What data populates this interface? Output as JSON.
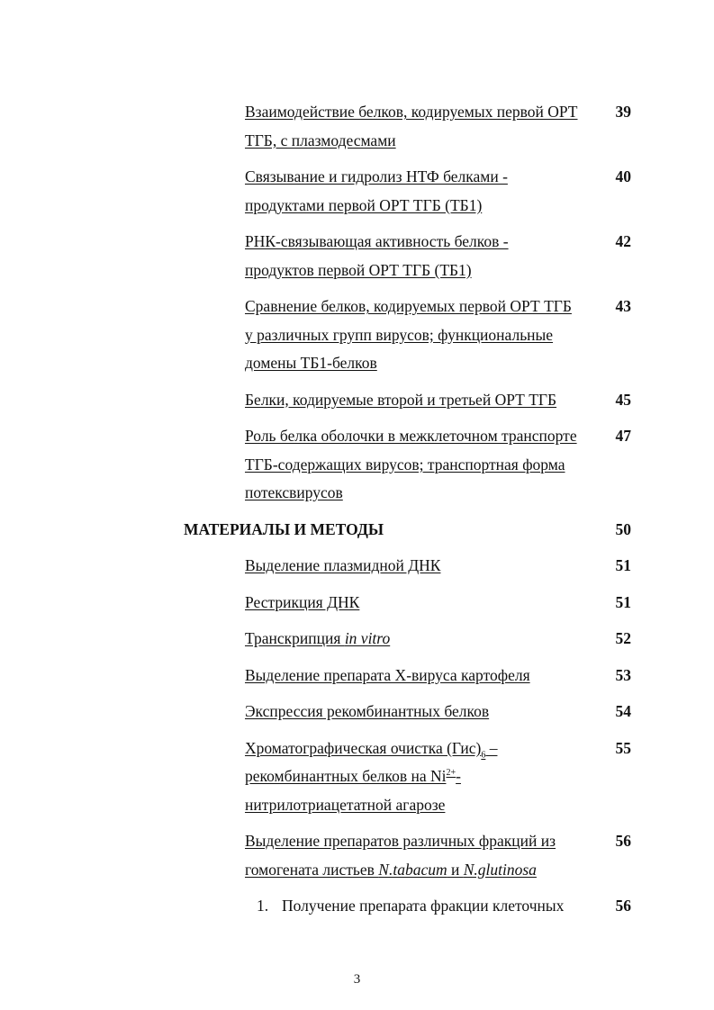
{
  "entries": [
    {
      "style": "u",
      "page": "39",
      "lines": [
        [
          {
            "t": "Взаимодействие белков, кодируемых первой ОРТ"
          }
        ],
        [
          {
            "t": "ТГБ, с плазмодесмами"
          }
        ]
      ]
    },
    {
      "style": "u",
      "page": "40",
      "lines": [
        [
          {
            "t": "Связывание и гидролиз НТФ белками -"
          }
        ],
        [
          {
            "t": "продуктами первой ОРТ ТГБ (ТБ1)"
          }
        ]
      ]
    },
    {
      "style": "u",
      "page": "42",
      "lines": [
        [
          {
            "t": "РНК-связывающая активность белков -"
          }
        ],
        [
          {
            "t": "продуктов первой ОРТ ТГБ (ТБ1)"
          }
        ]
      ]
    },
    {
      "style": "u",
      "page": "43",
      "lines": [
        [
          {
            "t": "Сравнение белков, кодируемых первой ОРТ ТГБ"
          }
        ],
        [
          {
            "t": "у различных групп вирусов; функциональные"
          }
        ],
        [
          {
            "t": "домены ТБ1-белков"
          }
        ]
      ]
    },
    {
      "style": "u",
      "page": "45",
      "lines": [
        [
          {
            "t": "Белки, кодируемые второй и третьей ОРТ ТГБ"
          }
        ]
      ]
    },
    {
      "style": "u",
      "page": "47",
      "lines": [
        [
          {
            "t": "Роль белка оболочки в межклеточном транспорте"
          }
        ],
        [
          {
            "t": "ТГБ-содержащих вирусов; транспортная форма"
          }
        ],
        [
          {
            "t": "потексвирусов"
          }
        ]
      ]
    },
    {
      "style": "heading",
      "page": "50",
      "lines": [
        [
          {
            "t": "МАТЕРИАЛЫ И МЕТОДЫ"
          }
        ]
      ]
    },
    {
      "style": "u",
      "page": "51",
      "lines": [
        [
          {
            "t": "Выделение плазмидной ДНК"
          }
        ]
      ]
    },
    {
      "style": "u",
      "page": "51",
      "lines": [
        [
          {
            "t": "Рестрикция ДНК"
          }
        ]
      ]
    },
    {
      "style": "u",
      "page": "52",
      "lines": [
        [
          {
            "t": "Транскрипция "
          },
          {
            "t": "in vitro",
            "f": "i"
          }
        ]
      ]
    },
    {
      "style": "u",
      "page": "53",
      "lines": [
        [
          {
            "t": "Выделение препарата Х-вируса картофеля"
          }
        ]
      ]
    },
    {
      "style": "u",
      "page": "54",
      "lines": [
        [
          {
            "t": "Экспрессия рекомбинантных белков"
          }
        ]
      ]
    },
    {
      "style": "u",
      "page": "55",
      "lines": [
        [
          {
            "t": "Хроматографическая очистка (Гис)"
          },
          {
            "t": "6",
            "f": "sub"
          },
          {
            "t": " –"
          }
        ],
        [
          {
            "t": "рекомбинантных белков на Ni"
          },
          {
            "t": "2+",
            "f": "sup"
          },
          {
            "t": "-"
          }
        ],
        [
          {
            "t": "нитрилотриацетатной агарозе"
          }
        ]
      ]
    },
    {
      "style": "u",
      "page": "56",
      "lines": [
        [
          {
            "t": "Выделение препаратов различных фракций из"
          }
        ],
        [
          {
            "t": "гомогената листьев "
          },
          {
            "t": "N.tabacum",
            "f": "i"
          },
          {
            "t": " и "
          },
          {
            "t": "N.glutinosa",
            "f": "i"
          }
        ]
      ]
    },
    {
      "style": "numbered",
      "number": "1.",
      "page": "56",
      "lines": [
        [
          {
            "t": "Получение препарата фракции клеточных"
          }
        ]
      ]
    }
  ],
  "footer": {
    "page_number": "3"
  }
}
